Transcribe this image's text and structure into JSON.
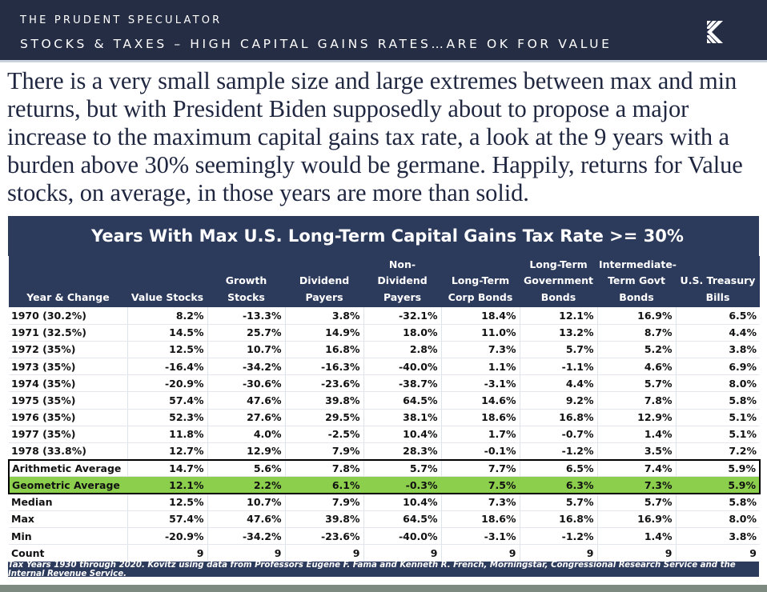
{
  "header": {
    "brand": "THE PRUDENT SPECULATOR",
    "title": "STOCKS & TAXES – HIGH CAPITAL GAINS RATES…ARE OK FOR VALUE",
    "logo_icon": "kovitz-chevron-logo-icon"
  },
  "intro_text": "There is a very small sample size and large extremes between max and min returns, but with President Biden supposedly about to propose a major increase to the maximum capital gains tax rate, a look at the 9 years with a burden above 30% seemingly would be germane. Happily, returns for Value stocks, on average, in those years are more than solid.",
  "colors": {
    "header_bg": "#252d44",
    "table_header_bg": "#2c3a5c",
    "highlight_green": "#8ccf4c",
    "body_text": "#1f2640"
  },
  "table": {
    "title": "Years With Max U.S. Long-Term Capital Gains Tax Rate  >= 30%",
    "columns": [
      "Year & Change",
      "Value Stocks",
      "Growth\nStocks",
      "Dividend\nPayers",
      "Non-\nDividend\nPayers",
      "Long-Term\nCorp Bonds",
      "Long-Term\nGovernment\nBonds",
      "Intermediate-\nTerm Govt\nBonds",
      "U.S. Treasury\nBills"
    ],
    "rows": [
      [
        "1970 (30.2%)",
        "8.2%",
        "-13.3%",
        "3.8%",
        "-32.1%",
        "18.4%",
        "12.1%",
        "16.9%",
        "6.5%"
      ],
      [
        "1971 (32.5%)",
        "14.5%",
        "25.7%",
        "14.9%",
        "18.0%",
        "11.0%",
        "13.2%",
        "8.7%",
        "4.4%"
      ],
      [
        "1972 (35%)",
        "12.5%",
        "10.7%",
        "16.8%",
        "2.8%",
        "7.3%",
        "5.7%",
        "5.2%",
        "3.8%"
      ],
      [
        "1973 (35%)",
        "-16.4%",
        "-34.2%",
        "-16.3%",
        "-40.0%",
        "1.1%",
        "-1.1%",
        "4.6%",
        "6.9%"
      ],
      [
        "1974 (35%)",
        "-20.9%",
        "-30.6%",
        "-23.6%",
        "-38.7%",
        "-3.1%",
        "4.4%",
        "5.7%",
        "8.0%"
      ],
      [
        "1975 (35%)",
        "57.4%",
        "47.6%",
        "39.8%",
        "64.5%",
        "14.6%",
        "9.2%",
        "7.8%",
        "5.8%"
      ],
      [
        "1976 (35%)",
        "52.3%",
        "27.6%",
        "29.5%",
        "38.1%",
        "18.6%",
        "16.8%",
        "12.9%",
        "5.1%"
      ],
      [
        "1977 (35%)",
        "11.8%",
        "4.0%",
        "-2.5%",
        "10.4%",
        "1.7%",
        "-0.7%",
        "1.4%",
        "5.1%"
      ],
      [
        "1978 (33.8%)",
        "12.7%",
        "12.9%",
        "7.9%",
        "28.3%",
        "-0.1%",
        "-1.2%",
        "3.5%",
        "7.2%"
      ]
    ],
    "summary": [
      {
        "kind": "arith",
        "cells": [
          "Arithmetic Average",
          "14.7%",
          "5.6%",
          "7.8%",
          "5.7%",
          "7.7%",
          "6.5%",
          "7.4%",
          "5.9%"
        ]
      },
      {
        "kind": "geo",
        "cells": [
          "Geometric Average",
          "12.1%",
          "2.2%",
          "6.1%",
          "-0.3%",
          "7.5%",
          "6.3%",
          "7.3%",
          "5.9%"
        ]
      },
      {
        "kind": "plain",
        "cells": [
          "Median",
          "12.5%",
          "10.7%",
          "7.9%",
          "10.4%",
          "7.3%",
          "5.7%",
          "5.7%",
          "5.8%"
        ]
      },
      {
        "kind": "plain",
        "cells": [
          "Max",
          "57.4%",
          "47.6%",
          "39.8%",
          "64.5%",
          "18.6%",
          "16.8%",
          "16.9%",
          "8.0%"
        ]
      },
      {
        "kind": "plain",
        "cells": [
          "Min",
          "-20.9%",
          "-34.2%",
          "-23.6%",
          "-40.0%",
          "-3.1%",
          "-1.2%",
          "1.4%",
          "3.8%"
        ]
      },
      {
        "kind": "plain",
        "cells": [
          "Count",
          "9",
          "9",
          "9",
          "9",
          "9",
          "9",
          "9",
          "9"
        ]
      }
    ],
    "footnote": "Tax Years 1930 through 2020. Kovitz using data from Professors Eugene F. Fama and Kenneth R. French, Morningstar, Congressional Research Service and the Internal Revenue Service."
  }
}
